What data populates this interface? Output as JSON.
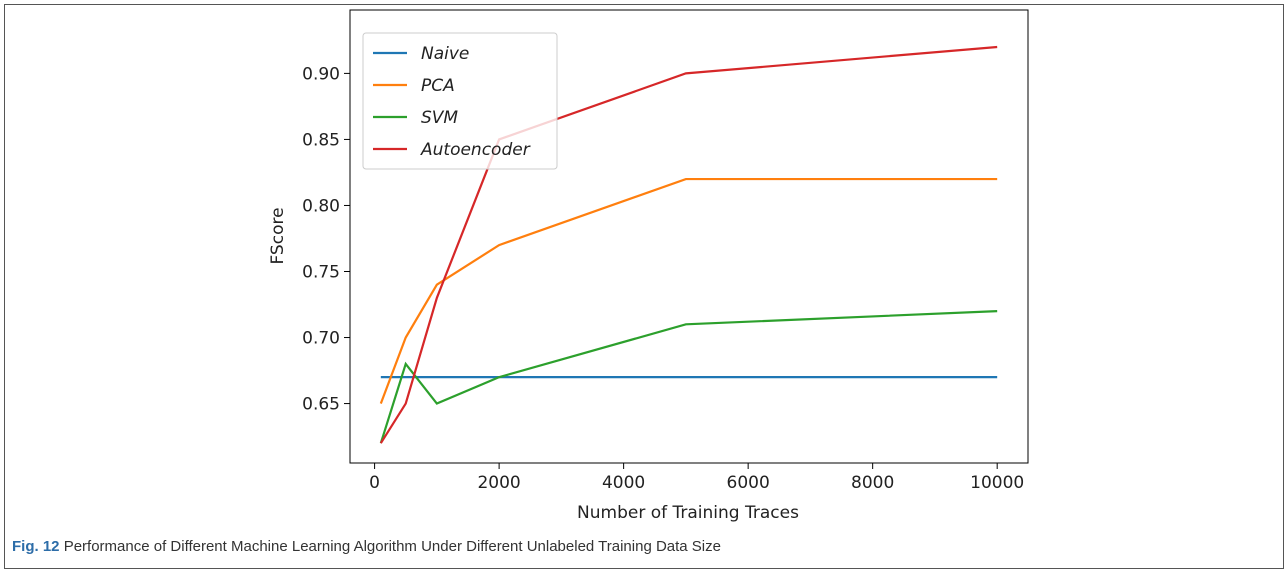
{
  "chart_data": {
    "type": "line",
    "x_label": "Number of Training Traces",
    "y_label": "FScore",
    "x": [
      100,
      500,
      1000,
      2000,
      5000,
      10000
    ],
    "series": [
      {
        "name": "Naive",
        "color": "#1f77b4",
        "values": [
          0.67,
          0.67,
          0.67,
          0.67,
          0.67,
          0.67
        ]
      },
      {
        "name": "PCA",
        "color": "#ff7f0e",
        "values": [
          0.65,
          0.7,
          0.74,
          0.77,
          0.82,
          0.82
        ]
      },
      {
        "name": "SVM",
        "color": "#2ca02c",
        "values": [
          0.62,
          0.68,
          0.65,
          0.67,
          0.71,
          0.72
        ]
      },
      {
        "name": "Autoencoder",
        "color": "#d62728",
        "values": [
          0.62,
          0.65,
          0.73,
          0.85,
          0.9,
          0.92
        ]
      }
    ],
    "xlim": [
      -395,
      10495
    ],
    "ylim": [
      0.605,
      0.948
    ],
    "xticks": [
      0,
      2000,
      4000,
      6000,
      8000,
      10000
    ],
    "yticks": [
      0.65,
      {
        "value": 0.7,
        "label": "0.70"
      },
      0.75,
      {
        "value": 0.8,
        "label": "0.80"
      },
      0.85,
      {
        "value": 0.9,
        "label": "0.90"
      }
    ],
    "legend": "upper left",
    "legend_italic": true,
    "grid": false
  },
  "caption": {
    "label": "Fig. 12",
    "text": "Performance of Different Machine Learning Algorithm Under Different Unlabeled Training Data Size"
  }
}
